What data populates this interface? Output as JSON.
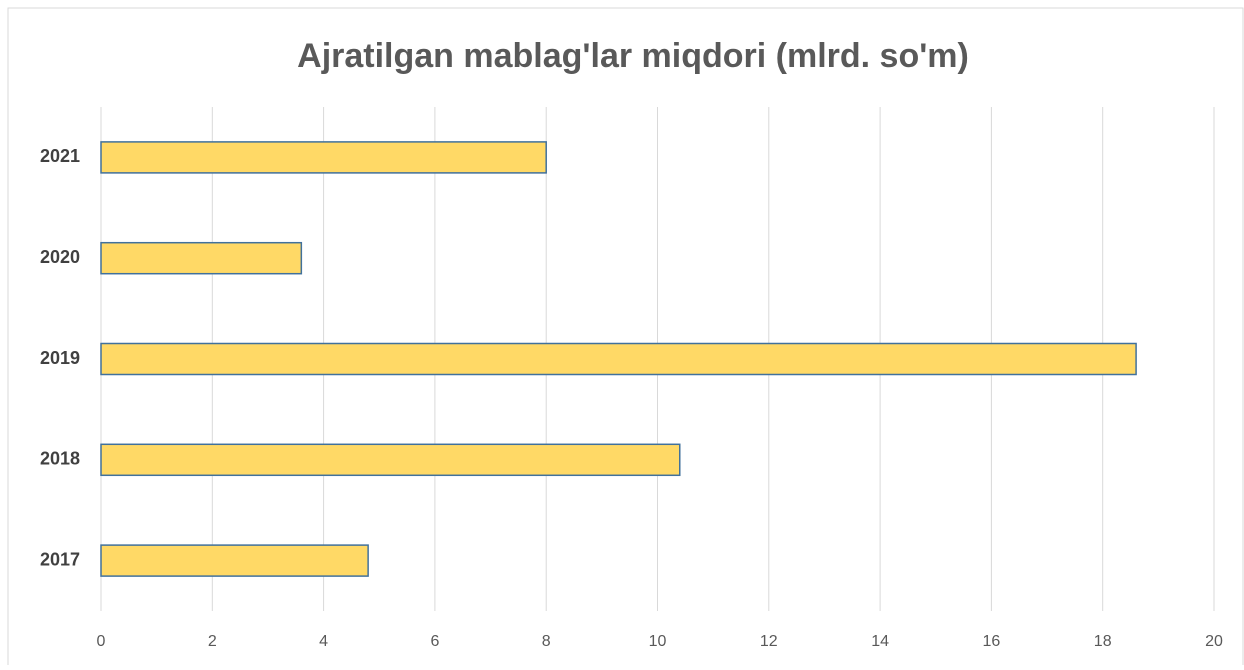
{
  "chart_data": {
    "type": "barh",
    "title": "Ajratilgan mablag'lar miqdori (mlrd. so'm)",
    "categories": [
      "2017",
      "2018",
      "2019",
      "2020",
      "2021"
    ],
    "values": [
      4.8,
      10.4,
      18.6,
      3.6,
      8
    ],
    "color": "#ffd966",
    "edgecolor": "#41719c",
    "xlim": [
      0,
      20
    ],
    "xticks": [
      0,
      2,
      4,
      6,
      8,
      10,
      12,
      14,
      16,
      18,
      20
    ],
    "grid": true
  }
}
